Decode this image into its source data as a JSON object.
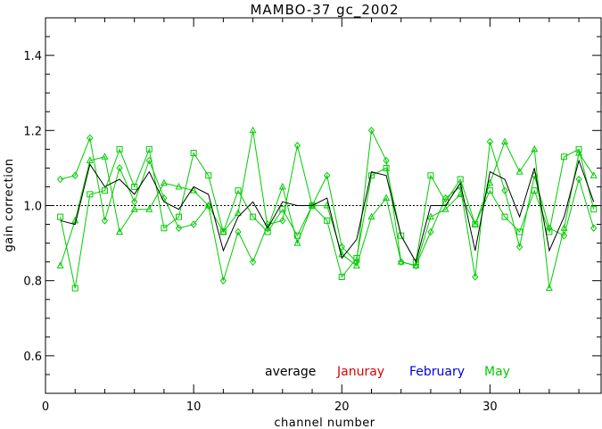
{
  "chart_data": {
    "type": "line",
    "title": "MAMBO-37 gc_2002",
    "xlabel": "channel number",
    "ylabel": "gain correction",
    "xlim": [
      0,
      37.5
    ],
    "ylim": [
      0.5,
      1.5
    ],
    "xticks": [
      0,
      10,
      20,
      30
    ],
    "yticks": [
      0.6,
      0.8,
      1.0,
      1.2,
      1.4
    ],
    "xtick_labels": [
      "0",
      "10",
      "20",
      "30"
    ],
    "ytick_labels": [
      "0.6",
      "0.8",
      "1.0",
      "1.2",
      "1.4"
    ],
    "reference_line": 1.0,
    "x": [
      1,
      2,
      3,
      4,
      5,
      6,
      7,
      8,
      9,
      10,
      11,
      12,
      13,
      14,
      15,
      16,
      17,
      18,
      19,
      20,
      21,
      22,
      23,
      24,
      25,
      26,
      27,
      28,
      29,
      30,
      31,
      32,
      33,
      34,
      35,
      36,
      37
    ],
    "legend": [
      {
        "label": "average",
        "color": "#000000"
      },
      {
        "label": "Januray",
        "color": "#e00000"
      },
      {
        "label": "February",
        "color": "#0000e0"
      },
      {
        "label": "May",
        "color": "#00cc00"
      }
    ],
    "series": [
      {
        "name": "average",
        "color": "#000000",
        "marker": "none",
        "values": [
          0.96,
          0.95,
          1.11,
          1.05,
          1.07,
          1.03,
          1.09,
          1.01,
          0.99,
          1.05,
          1.03,
          0.88,
          0.97,
          1.01,
          0.94,
          1.01,
          1.0,
          1.0,
          1.02,
          0.86,
          0.91,
          1.09,
          1.08,
          0.92,
          0.85,
          1.0,
          1.0,
          1.06,
          0.88,
          1.09,
          1.07,
          0.97,
          1.1,
          0.88,
          0.97,
          1.12,
          1.01
        ]
      },
      {
        "name": "",
        "color": "#00cc00",
        "marker": "square",
        "values": [
          0.97,
          0.78,
          1.03,
          1.04,
          1.15,
          1.05,
          1.15,
          0.94,
          0.97,
          1.14,
          1.08,
          0.93,
          1.04,
          0.97,
          0.93,
          0.99,
          0.92,
          1.0,
          0.96,
          0.81,
          0.86,
          1.08,
          1.1,
          0.92,
          0.85,
          1.08,
          1.01,
          1.07,
          0.95,
          1.04,
          0.97,
          0.93,
          1.04,
          0.93,
          1.13,
          1.15,
          0.99
        ]
      },
      {
        "name": "",
        "color": "#00cc00",
        "marker": "diamond",
        "values": [
          1.07,
          1.08,
          1.18,
          0.96,
          1.1,
          1.01,
          1.12,
          1.02,
          0.94,
          0.95,
          1.0,
          0.8,
          0.93,
          0.85,
          0.95,
          0.96,
          1.16,
          1.0,
          1.08,
          0.89,
          0.85,
          1.2,
          1.12,
          0.85,
          0.84,
          0.93,
          1.02,
          1.05,
          0.81,
          1.17,
          1.04,
          0.89,
          1.08,
          0.94,
          0.92,
          1.07,
          0.94
        ]
      },
      {
        "name": "",
        "color": "#00cc00",
        "marker": "triangle",
        "values": [
          0.84,
          0.96,
          1.12,
          1.13,
          0.93,
          0.99,
          0.99,
          1.06,
          1.05,
          1.04,
          1.0,
          0.93,
          0.98,
          1.2,
          0.94,
          1.05,
          0.9,
          1.0,
          1.0,
          0.87,
          0.84,
          0.97,
          1.02,
          0.85,
          0.84,
          0.97,
          0.99,
          1.03,
          0.95,
          1.06,
          1.17,
          1.09,
          1.15,
          0.78,
          0.94,
          1.14,
          1.08
        ]
      }
    ]
  }
}
